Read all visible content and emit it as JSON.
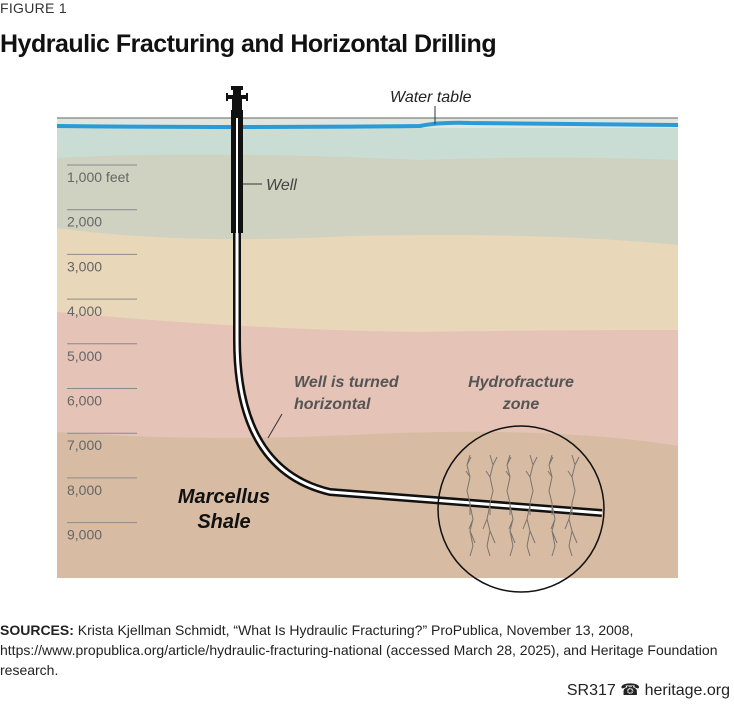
{
  "figure_label": "FIGURE 1",
  "title": "Hydraulic Fracturing and Horizontal Drilling",
  "diagram": {
    "labels": {
      "water_table": "Water table",
      "well": "Well",
      "well_turned": [
        "Well is turned",
        "horizontal"
      ],
      "hydrofracture": [
        "Hydrofracture",
        "zone"
      ],
      "shale": [
        "Marcellus",
        "Shale"
      ]
    },
    "depths": [
      "1,000 feet",
      "2,000",
      "3,000",
      "4,000",
      "5,000",
      "6,000",
      "7,000",
      "8,000",
      "9,000"
    ],
    "colors": {
      "water": "#2a9bd6",
      "layer1": "#c9ddd4",
      "layer2": "#cfd2c0",
      "layer3": "#e8d7b9",
      "layer4": "#e5c3b7",
      "layer5": "#d7bca3"
    }
  },
  "sources": {
    "label": "SOURCES:",
    "text": "Krista Kjellman Schmidt, “What Is Hydraulic Fracturing?” ProPublica, November 13, 2008, https://www.propublica.org/article/hydraulic-fracturing-national (accessed March 28, 2025), and Heritage Foundation research."
  },
  "footer": {
    "code": "SR317",
    "site": "heritage.org",
    "icon": "liberty-bell-icon"
  }
}
